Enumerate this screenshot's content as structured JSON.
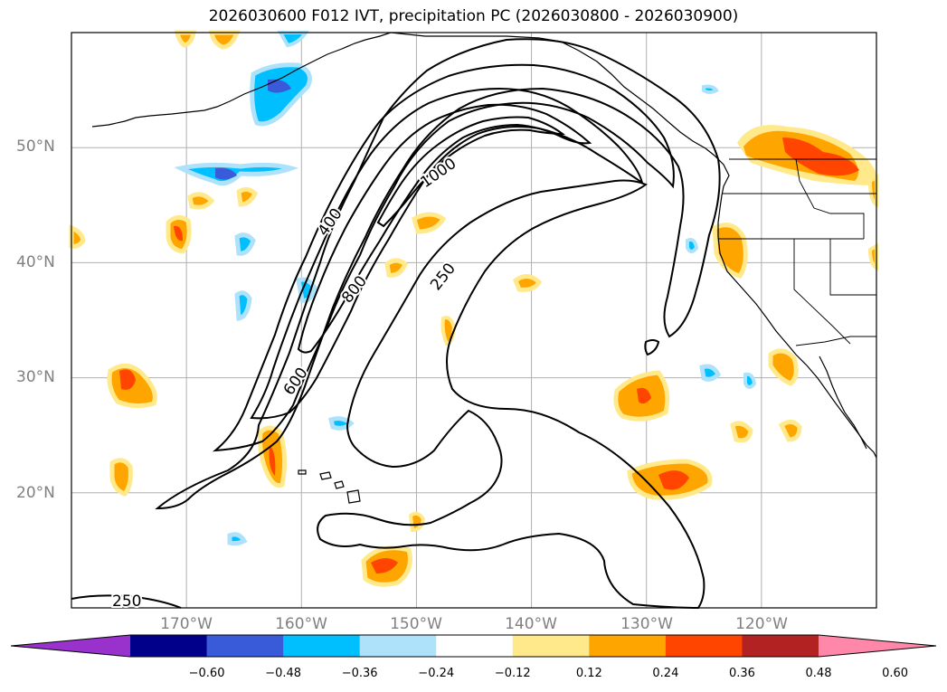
{
  "title": "2026030600 F012 IVT, precipitation PC (2026030800 - 2026030900)",
  "map": {
    "projection": "cylindrical",
    "lon_range": [
      -180,
      -110
    ],
    "lat_range": [
      10,
      60
    ],
    "lat_labels": [
      {
        "lat": 50,
        "text": "50°N"
      },
      {
        "lat": 40,
        "text": "40°N"
      },
      {
        "lat": 30,
        "text": "30°N"
      },
      {
        "lat": 20,
        "text": "20°N"
      }
    ],
    "lon_labels": [
      {
        "lon": -170,
        "text": "170°W"
      },
      {
        "lon": -160,
        "text": "160°W"
      },
      {
        "lon": -150,
        "text": "150°W"
      },
      {
        "lon": -140,
        "text": "140°W"
      },
      {
        "lon": -130,
        "text": "130°W"
      },
      {
        "lon": -120,
        "text": "120°W"
      }
    ],
    "ivt_contour_labels": [
      {
        "value": "1000"
      },
      {
        "value": "400"
      },
      {
        "value": "800"
      },
      {
        "value": "250"
      },
      {
        "value": "600"
      },
      {
        "value": "250"
      }
    ]
  },
  "colorbar": {
    "ticks": [
      "−0.60",
      "−0.48",
      "−0.36",
      "−0.24",
      "−0.12",
      "0.12",
      "0.24",
      "0.36",
      "0.48",
      "0.60"
    ],
    "colors": [
      "#9932cc",
      "#00008b",
      "#3a5bd9",
      "#00bfff",
      "#ade2fa",
      "#ffffff",
      "#ffe98a",
      "#ffa500",
      "#ff4500",
      "#b22222",
      "#ff88aa"
    ],
    "extend": "both"
  }
}
